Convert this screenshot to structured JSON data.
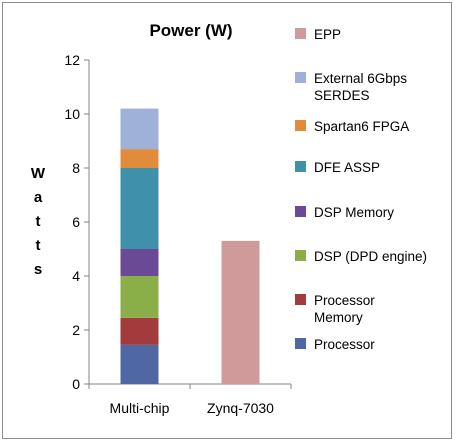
{
  "chart_data": {
    "type": "bar",
    "stacked": true,
    "title": "Power (W)",
    "ylabel": "Watts",
    "ylim": [
      0,
      12
    ],
    "yticks": [
      0,
      2,
      4,
      6,
      8,
      10,
      12
    ],
    "grid": false,
    "legend_position": "right",
    "categories": [
      "Multi-chip",
      "Zynq-7030"
    ],
    "series": [
      {
        "name": "Processor",
        "color": "#4f68a3",
        "values": [
          1.45,
          0
        ]
      },
      {
        "name": "Processor Memory",
        "color": "#a23b3b",
        "values": [
          1.0,
          0
        ]
      },
      {
        "name": "DSP (DPD engine)",
        "color": "#8aae48",
        "values": [
          1.55,
          0
        ]
      },
      {
        "name": "DSP Memory",
        "color": "#6a4a94",
        "values": [
          1.0,
          0
        ]
      },
      {
        "name": "DFE ASSP",
        "color": "#3f91ab",
        "values": [
          3.0,
          0
        ]
      },
      {
        "name": "Spartan6 FPGA",
        "color": "#e08c3a",
        "values": [
          0.7,
          0
        ]
      },
      {
        "name": "External 6Gbps SERDES",
        "color": "#9fb1d8",
        "values": [
          1.5,
          0
        ]
      },
      {
        "name": "EPP",
        "color": "#d09a9a",
        "values": [
          0,
          5.3
        ]
      }
    ],
    "legend_order": [
      "EPP",
      "External 6Gbps SERDES",
      "Spartan6 FPGA",
      "DFE ASSP",
      "DSP Memory",
      "DSP (DPD engine)",
      "Processor Memory",
      "Processor"
    ],
    "legend_lines": {
      "EPP": [
        "EPP"
      ],
      "External 6Gbps SERDES": [
        "External 6Gbps",
        "SERDES"
      ],
      "Spartan6 FPGA": [
        "Spartan6 FPGA"
      ],
      "DFE ASSP": [
        "DFE ASSP"
      ],
      "DSP Memory": [
        "DSP Memory"
      ],
      "DSP (DPD engine)": [
        "DSP (DPD engine)"
      ],
      "Processor Memory": [
        "Processor",
        "Memory"
      ],
      "Processor": [
        "Processor"
      ]
    }
  }
}
